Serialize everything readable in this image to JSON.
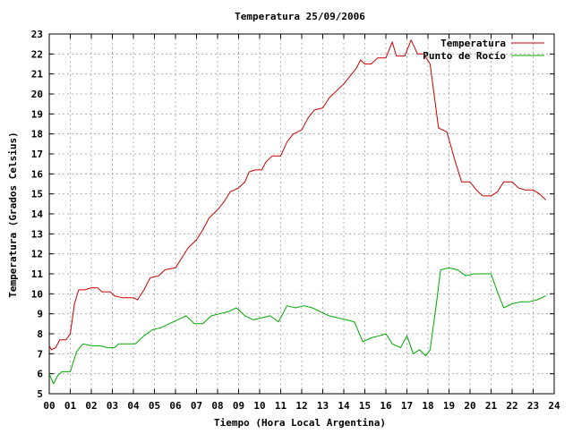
{
  "chart_data": {
    "type": "line",
    "title": "Temperatura 25/09/2006",
    "xlabel": "Tiempo (Hora Local Argentina)",
    "ylabel": "Temperatura (Grados Celsius)",
    "xlim": [
      0,
      24
    ],
    "ylim": [
      5,
      23
    ],
    "grid": true,
    "legend_position": "top-right",
    "x_ticks": [
      "00",
      "01",
      "02",
      "03",
      "04",
      "05",
      "06",
      "07",
      "08",
      "09",
      "10",
      "11",
      "12",
      "13",
      "14",
      "15",
      "16",
      "17",
      "18",
      "19",
      "20",
      "21",
      "22",
      "23",
      "24"
    ],
    "y_ticks": [
      "5",
      "6",
      "7",
      "8",
      "9",
      "10",
      "11",
      "12",
      "13",
      "14",
      "15",
      "16",
      "17",
      "18",
      "19",
      "20",
      "21",
      "22",
      "23"
    ],
    "series": [
      {
        "name": "Temperatura",
        "color": "#cc0000",
        "points": [
          [
            0.0,
            7.4
          ],
          [
            0.1,
            7.2
          ],
          [
            0.3,
            7.3
          ],
          [
            0.5,
            7.7
          ],
          [
            0.8,
            7.7
          ],
          [
            1.0,
            8.0
          ],
          [
            1.2,
            9.5
          ],
          [
            1.4,
            10.2
          ],
          [
            1.7,
            10.2
          ],
          [
            2.0,
            10.3
          ],
          [
            2.3,
            10.3
          ],
          [
            2.5,
            10.1
          ],
          [
            2.9,
            10.1
          ],
          [
            3.1,
            9.9
          ],
          [
            3.5,
            9.8
          ],
          [
            4.0,
            9.8
          ],
          [
            4.2,
            9.7
          ],
          [
            4.5,
            10.2
          ],
          [
            4.8,
            10.8
          ],
          [
            5.2,
            10.9
          ],
          [
            5.5,
            11.2
          ],
          [
            6.0,
            11.3
          ],
          [
            6.3,
            11.8
          ],
          [
            6.6,
            12.3
          ],
          [
            7.0,
            12.7
          ],
          [
            7.3,
            13.2
          ],
          [
            7.6,
            13.8
          ],
          [
            8.0,
            14.2
          ],
          [
            8.3,
            14.6
          ],
          [
            8.6,
            15.1
          ],
          [
            9.0,
            15.3
          ],
          [
            9.3,
            15.6
          ],
          [
            9.5,
            16.1
          ],
          [
            9.8,
            16.2
          ],
          [
            10.1,
            16.2
          ],
          [
            10.3,
            16.6
          ],
          [
            10.6,
            16.9
          ],
          [
            11.0,
            16.9
          ],
          [
            11.3,
            17.6
          ],
          [
            11.6,
            18.0
          ],
          [
            12.0,
            18.2
          ],
          [
            12.3,
            18.8
          ],
          [
            12.6,
            19.2
          ],
          [
            13.0,
            19.3
          ],
          [
            13.3,
            19.8
          ],
          [
            13.6,
            20.1
          ],
          [
            14.0,
            20.5
          ],
          [
            14.3,
            20.9
          ],
          [
            14.6,
            21.3
          ],
          [
            14.8,
            21.7
          ],
          [
            15.0,
            21.5
          ],
          [
            15.3,
            21.5
          ],
          [
            15.6,
            21.8
          ],
          [
            16.0,
            21.8
          ],
          [
            16.3,
            22.6
          ],
          [
            16.5,
            21.9
          ],
          [
            16.9,
            21.9
          ],
          [
            17.2,
            22.7
          ],
          [
            17.5,
            22.0
          ],
          [
            17.8,
            22.0
          ],
          [
            18.1,
            21.5
          ],
          [
            18.5,
            18.3
          ],
          [
            18.9,
            18.1
          ],
          [
            19.3,
            16.6
          ],
          [
            19.6,
            15.6
          ],
          [
            20.0,
            15.6
          ],
          [
            20.3,
            15.2
          ],
          [
            20.6,
            14.9
          ],
          [
            21.0,
            14.9
          ],
          [
            21.3,
            15.1
          ],
          [
            21.6,
            15.6
          ],
          [
            22.0,
            15.6
          ],
          [
            22.3,
            15.3
          ],
          [
            22.6,
            15.2
          ],
          [
            23.0,
            15.2
          ],
          [
            23.3,
            15.0
          ],
          [
            23.6,
            14.7
          ]
        ]
      },
      {
        "name": "Punto de Rocío",
        "color": "#00aa00",
        "points": [
          [
            0.0,
            6.0
          ],
          [
            0.2,
            5.5
          ],
          [
            0.4,
            5.9
          ],
          [
            0.6,
            6.1
          ],
          [
            1.0,
            6.1
          ],
          [
            1.3,
            7.1
          ],
          [
            1.6,
            7.5
          ],
          [
            2.0,
            7.4
          ],
          [
            2.4,
            7.4
          ],
          [
            2.8,
            7.3
          ],
          [
            3.1,
            7.3
          ],
          [
            3.3,
            7.5
          ],
          [
            3.7,
            7.5
          ],
          [
            4.1,
            7.5
          ],
          [
            4.5,
            7.9
          ],
          [
            4.9,
            8.2
          ],
          [
            5.3,
            8.3
          ],
          [
            5.7,
            8.5
          ],
          [
            6.1,
            8.7
          ],
          [
            6.5,
            8.9
          ],
          [
            6.9,
            8.5
          ],
          [
            7.3,
            8.5
          ],
          [
            7.7,
            8.9
          ],
          [
            8.1,
            9.0
          ],
          [
            8.5,
            9.1
          ],
          [
            8.9,
            9.3
          ],
          [
            9.3,
            8.9
          ],
          [
            9.7,
            8.7
          ],
          [
            10.1,
            8.8
          ],
          [
            10.5,
            8.9
          ],
          [
            10.9,
            8.6
          ],
          [
            11.3,
            9.4
          ],
          [
            11.7,
            9.3
          ],
          [
            12.1,
            9.4
          ],
          [
            12.5,
            9.3
          ],
          [
            12.9,
            9.1
          ],
          [
            13.3,
            8.9
          ],
          [
            13.7,
            8.8
          ],
          [
            14.1,
            8.7
          ],
          [
            14.5,
            8.6
          ],
          [
            14.9,
            7.6
          ],
          [
            15.3,
            7.8
          ],
          [
            15.7,
            7.9
          ],
          [
            16.0,
            8.0
          ],
          [
            16.3,
            7.5
          ],
          [
            16.7,
            7.3
          ],
          [
            17.0,
            7.9
          ],
          [
            17.3,
            7.0
          ],
          [
            17.6,
            7.2
          ],
          [
            17.9,
            6.9
          ],
          [
            18.1,
            7.2
          ],
          [
            18.4,
            9.5
          ],
          [
            18.6,
            11.2
          ],
          [
            19.0,
            11.3
          ],
          [
            19.4,
            11.2
          ],
          [
            19.8,
            10.9
          ],
          [
            20.2,
            11.0
          ],
          [
            20.6,
            11.0
          ],
          [
            21.0,
            11.0
          ],
          [
            21.3,
            10.1
          ],
          [
            21.6,
            9.3
          ],
          [
            22.0,
            9.5
          ],
          [
            22.4,
            9.6
          ],
          [
            22.8,
            9.6
          ],
          [
            23.2,
            9.7
          ],
          [
            23.6,
            9.9
          ]
        ]
      }
    ]
  }
}
